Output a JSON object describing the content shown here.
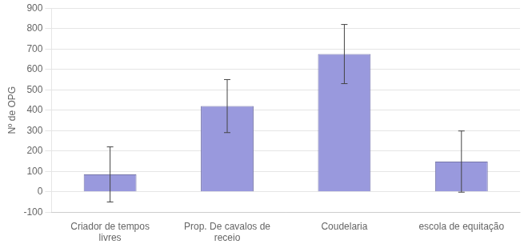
{
  "chart_data": {
    "type": "bar",
    "ylabel": "Nº de OPG",
    "categories": [
      "Criador de tempos\nlivres",
      "Prop. De cavalos de\nreceio",
      "Coudelaria",
      "escola de equitação"
    ],
    "values": [
      85,
      420,
      675,
      148
    ],
    "errors": [
      135,
      130,
      145,
      150
    ],
    "color": "#9999DD",
    "ylim": [
      -100,
      900
    ],
    "yticks": [
      -100,
      0,
      100,
      200,
      300,
      400,
      500,
      600,
      700,
      800,
      900
    ],
    "grid": true
  }
}
